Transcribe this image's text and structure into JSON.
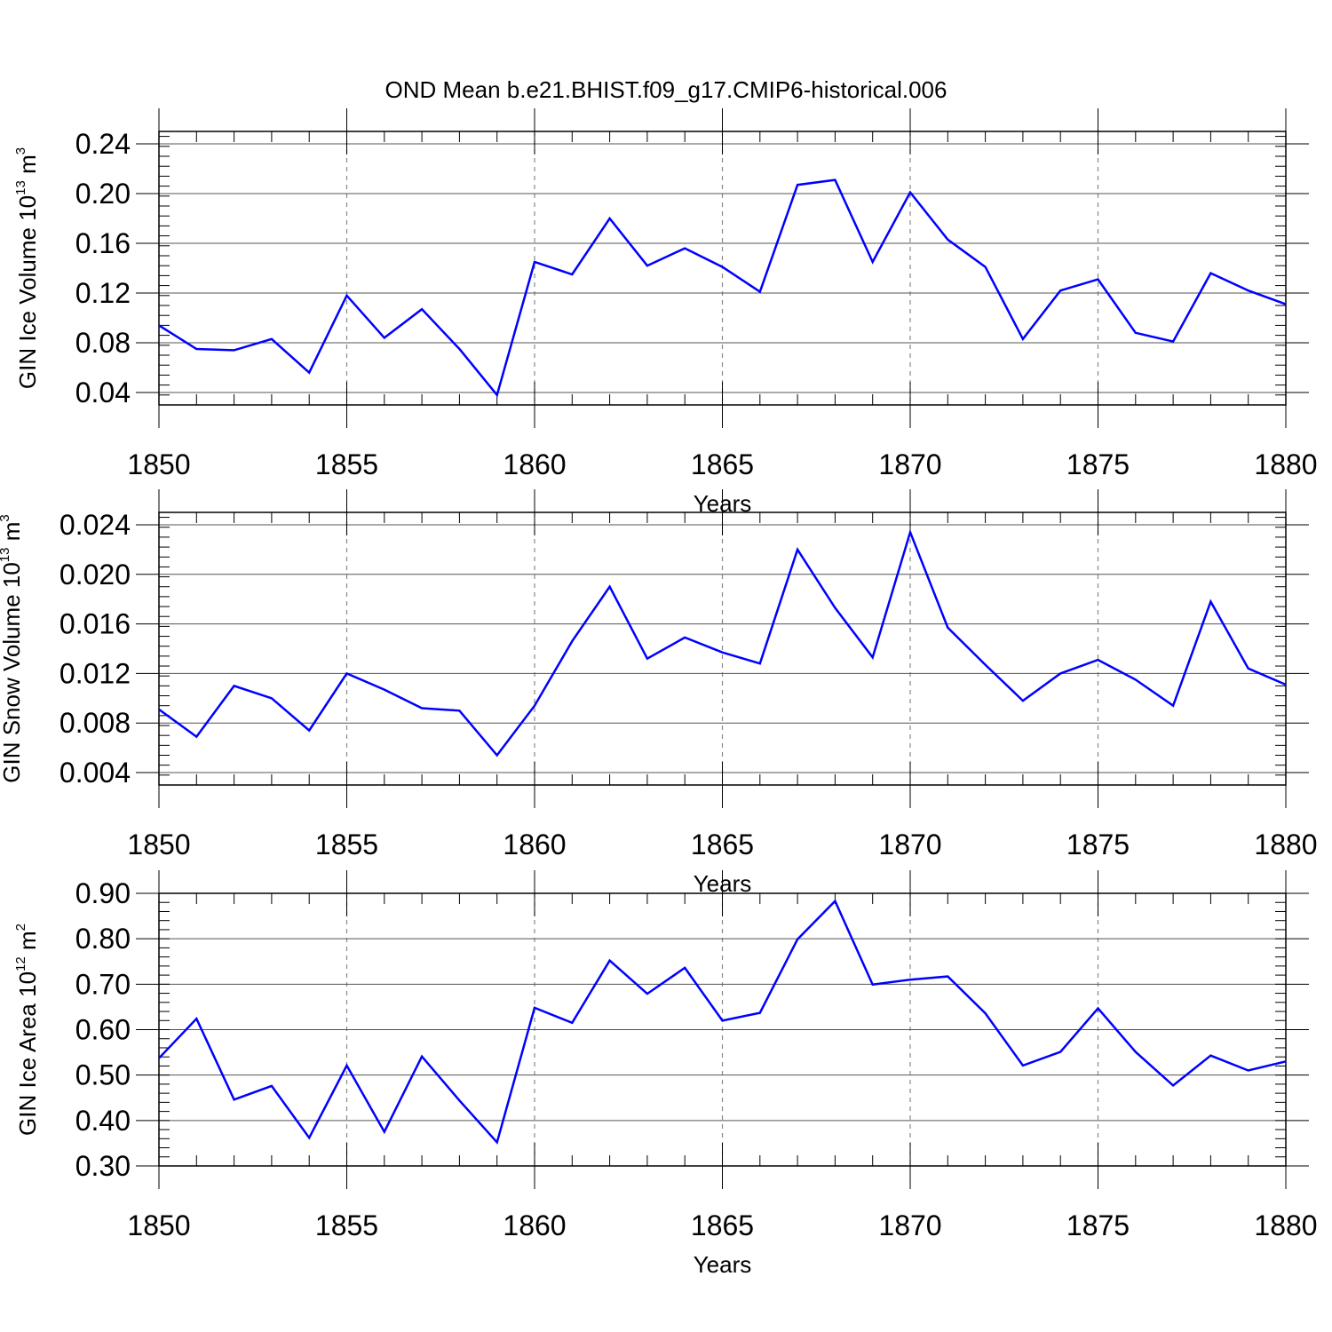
{
  "title": "OND Mean b.e21.BHIST.f09_g17.CMIP6-historical.006",
  "line_color": "#0000ff",
  "chart_data": [
    {
      "type": "line",
      "id": "ice-volume",
      "ylabel": {
        "text": "GIN Ice Volume 10",
        "exp": "13",
        "unit": " m",
        "unit_exp": "3"
      },
      "xlabel": "Years",
      "xlim": [
        1850,
        1880
      ],
      "ylim": [
        0.03,
        0.25
      ],
      "yticks": [
        0.04,
        0.08,
        0.12,
        0.16,
        0.2,
        0.24
      ],
      "ytick_labels": [
        "0.04",
        "0.08",
        "0.12",
        "0.16",
        "0.20",
        "0.24"
      ],
      "xticks": [
        1850,
        1855,
        1860,
        1865,
        1870,
        1875,
        1880
      ],
      "xtick_labels": [
        "1850",
        "1855",
        "1860",
        "1865",
        "1870",
        "1875",
        "1880"
      ],
      "x": [
        1850,
        1851,
        1852,
        1853,
        1854,
        1855,
        1856,
        1857,
        1858,
        1859,
        1860,
        1861,
        1862,
        1863,
        1864,
        1865,
        1866,
        1867,
        1868,
        1869,
        1870,
        1871,
        1872,
        1873,
        1874,
        1875,
        1876,
        1877,
        1878,
        1879,
        1880
      ],
      "values": [
        0.094,
        0.075,
        0.074,
        0.083,
        0.056,
        0.118,
        0.084,
        0.107,
        0.075,
        0.038,
        0.145,
        0.135,
        0.18,
        0.142,
        0.156,
        0.141,
        0.121,
        0.207,
        0.211,
        0.145,
        0.201,
        0.163,
        0.141,
        0.083,
        0.122,
        0.131,
        0.088,
        0.081,
        0.136,
        0.122,
        0.111
      ]
    },
    {
      "type": "line",
      "id": "snow-volume",
      "ylabel": {
        "text": "GIN Snow Volume 10",
        "exp": "13",
        "unit": " m",
        "unit_exp": "3"
      },
      "xlabel": "Years",
      "xlim": [
        1850,
        1880
      ],
      "ylim": [
        0.003,
        0.025
      ],
      "yticks": [
        0.004,
        0.008,
        0.012,
        0.016,
        0.02,
        0.024
      ],
      "ytick_labels": [
        "0.004",
        "0.008",
        "0.012",
        "0.016",
        "0.020",
        "0.024"
      ],
      "xticks": [
        1850,
        1855,
        1860,
        1865,
        1870,
        1875,
        1880
      ],
      "xtick_labels": [
        "1850",
        "1855",
        "1860",
        "1865",
        "1870",
        "1875",
        "1880"
      ],
      "x": [
        1850,
        1851,
        1852,
        1853,
        1854,
        1855,
        1856,
        1857,
        1858,
        1859,
        1860,
        1861,
        1862,
        1863,
        1864,
        1865,
        1866,
        1867,
        1868,
        1869,
        1870,
        1871,
        1872,
        1873,
        1874,
        1875,
        1876,
        1877,
        1878,
        1879,
        1880
      ],
      "values": [
        0.0091,
        0.0069,
        0.011,
        0.01,
        0.0074,
        0.012,
        0.0107,
        0.0092,
        0.009,
        0.0054,
        0.0094,
        0.0146,
        0.019,
        0.0132,
        0.0149,
        0.0137,
        0.0128,
        0.022,
        0.0173,
        0.0133,
        0.0234,
        0.0157,
        0.0127,
        0.0098,
        0.012,
        0.0131,
        0.0115,
        0.0094,
        0.0178,
        0.0124,
        0.0111
      ]
    },
    {
      "type": "line",
      "id": "ice-area",
      "ylabel": {
        "text": "GIN Ice Area 10",
        "exp": "12",
        "unit": " m",
        "unit_exp": "2"
      },
      "xlabel": "Years",
      "xlim": [
        1850,
        1880
      ],
      "ylim": [
        0.3,
        0.9
      ],
      "yticks": [
        0.3,
        0.4,
        0.5,
        0.6,
        0.7,
        0.8,
        0.9
      ],
      "ytick_labels": [
        "0.30",
        "0.40",
        "0.50",
        "0.60",
        "0.70",
        "0.80",
        "0.90"
      ],
      "xticks": [
        1850,
        1855,
        1860,
        1865,
        1870,
        1875,
        1880
      ],
      "xtick_labels": [
        "1850",
        "1855",
        "1860",
        "1865",
        "1870",
        "1875",
        "1880"
      ],
      "x": [
        1850,
        1851,
        1852,
        1853,
        1854,
        1855,
        1856,
        1857,
        1858,
        1859,
        1860,
        1861,
        1862,
        1863,
        1864,
        1865,
        1866,
        1867,
        1868,
        1869,
        1870,
        1871,
        1872,
        1873,
        1874,
        1875,
        1876,
        1877,
        1878,
        1879,
        1880
      ],
      "values": [
        0.537,
        0.624,
        0.446,
        0.476,
        0.362,
        0.521,
        0.375,
        0.541,
        0.444,
        0.352,
        0.648,
        0.615,
        0.752,
        0.679,
        0.736,
        0.62,
        0.637,
        0.799,
        0.883,
        0.699,
        0.71,
        0.717,
        0.636,
        0.521,
        0.551,
        0.647,
        0.551,
        0.477,
        0.543,
        0.51,
        0.53
      ]
    }
  ]
}
